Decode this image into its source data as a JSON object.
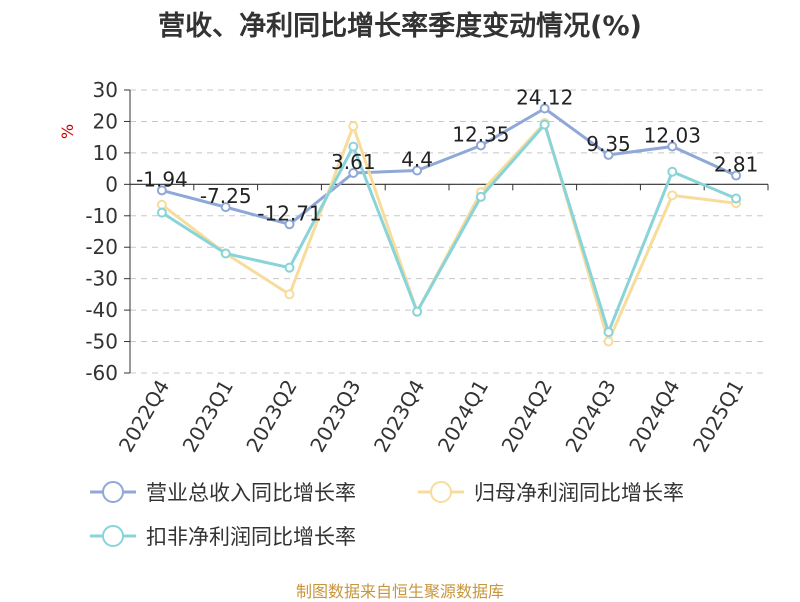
{
  "chart_data": {
    "type": "line",
    "title": "营收、净利同比增长率季度变动情况(%)",
    "ylabel": "%",
    "xlabel": "",
    "ylim": [
      -60,
      30
    ],
    "yticks": [
      30,
      20,
      10,
      0,
      -10,
      -20,
      -30,
      -40,
      -50,
      -60
    ],
    "categories": [
      "2022Q4",
      "2023Q1",
      "2023Q2",
      "2023Q3",
      "2023Q4",
      "2024Q1",
      "2024Q2",
      "2024Q3",
      "2024Q4",
      "2025Q1"
    ],
    "grid": true,
    "legend_position": "bottom",
    "series": [
      {
        "name": "营业总收入同比增长率",
        "color": "#8fa8d8",
        "values": [
          -1.94,
          -7.25,
          -12.71,
          3.61,
          4.4,
          12.35,
          24.12,
          9.35,
          12.03,
          2.81
        ],
        "labels": [
          "-1.94",
          "-7.25",
          "-12.71",
          "3.61",
          "4.4",
          "12.35",
          "24.12",
          "9.35",
          "12.03",
          "2.81"
        ]
      },
      {
        "name": "归母净利润同比增长率",
        "color": "#f8dc9c",
        "values": [
          -6.5,
          -22,
          -35,
          18.5,
          -40.5,
          -2.5,
          19.5,
          -50,
          -3.5,
          -6
        ]
      },
      {
        "name": "扣非净利润同比增长率",
        "color": "#88d4d8",
        "values": [
          -9,
          -22,
          -26.5,
          12,
          -40.5,
          -4,
          19,
          -47,
          4,
          -4.5
        ]
      }
    ]
  },
  "footer": {
    "source": "制图数据来自恒生聚源数据库"
  }
}
